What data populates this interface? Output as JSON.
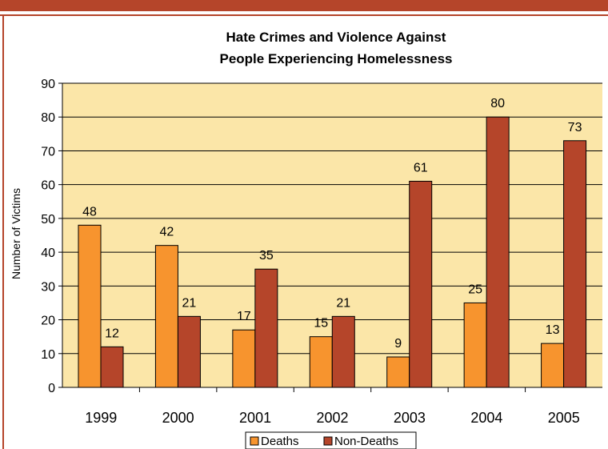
{
  "chart_data": {
    "type": "bar",
    "title": "Hate Crimes and Violence Against People Experiencing Homelessness",
    "title_lines": [
      "Hate Crimes and Violence Against",
      "People Experiencing Homelessness"
    ],
    "xlabel": "",
    "ylabel": "Number of Victims",
    "ylim": [
      0,
      90
    ],
    "yticks": [
      "0",
      "10",
      "20",
      "30",
      "40",
      "50",
      "60",
      "70",
      "80",
      "90"
    ],
    "categories": [
      "1999",
      "2000",
      "2001",
      "2002",
      "2003",
      "2004",
      "2005"
    ],
    "series": [
      {
        "name": "Deaths",
        "values": [
          48,
          42,
          17,
          15,
          9,
          25,
          13
        ],
        "color": "#F7942E"
      },
      {
        "name": "Non-Deaths",
        "values": [
          12,
          21,
          35,
          21,
          61,
          80,
          73
        ],
        "color": "#B5452A"
      }
    ],
    "grid": true,
    "legend_position": "bottom",
    "colors": {
      "frame": "#B5452A",
      "plot_background": "#FBE6A8",
      "gridline": "#000000"
    }
  }
}
